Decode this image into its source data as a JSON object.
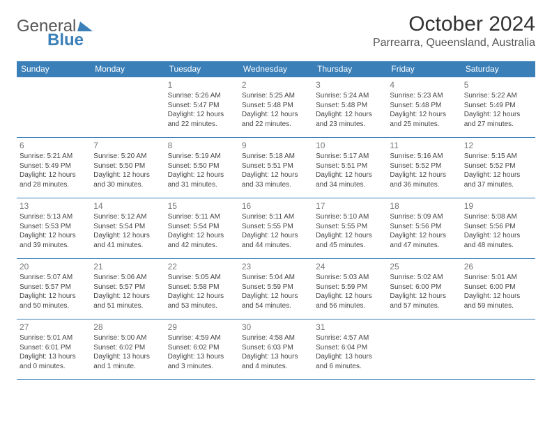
{
  "brand": {
    "name1": "General",
    "name2": "Blue",
    "color": "#3a7fb8"
  },
  "title": "October 2024",
  "location": "Parrearra, Queensland, Australia",
  "header_bg": "#3a7fb8",
  "header_fg": "#ffffff",
  "rule_color": "#3a7fb8",
  "daynum_color": "#777777",
  "text_color": "#444444",
  "day_headers": [
    "Sunday",
    "Monday",
    "Tuesday",
    "Wednesday",
    "Thursday",
    "Friday",
    "Saturday"
  ],
  "weeks": [
    [
      null,
      null,
      {
        "n": "1",
        "sr": "5:26 AM",
        "ss": "5:47 PM",
        "dl": "12 hours and 22 minutes."
      },
      {
        "n": "2",
        "sr": "5:25 AM",
        "ss": "5:48 PM",
        "dl": "12 hours and 22 minutes."
      },
      {
        "n": "3",
        "sr": "5:24 AM",
        "ss": "5:48 PM",
        "dl": "12 hours and 23 minutes."
      },
      {
        "n": "4",
        "sr": "5:23 AM",
        "ss": "5:48 PM",
        "dl": "12 hours and 25 minutes."
      },
      {
        "n": "5",
        "sr": "5:22 AM",
        "ss": "5:49 PM",
        "dl": "12 hours and 27 minutes."
      }
    ],
    [
      {
        "n": "6",
        "sr": "5:21 AM",
        "ss": "5:49 PM",
        "dl": "12 hours and 28 minutes."
      },
      {
        "n": "7",
        "sr": "5:20 AM",
        "ss": "5:50 PM",
        "dl": "12 hours and 30 minutes."
      },
      {
        "n": "8",
        "sr": "5:19 AM",
        "ss": "5:50 PM",
        "dl": "12 hours and 31 minutes."
      },
      {
        "n": "9",
        "sr": "5:18 AM",
        "ss": "5:51 PM",
        "dl": "12 hours and 33 minutes."
      },
      {
        "n": "10",
        "sr": "5:17 AM",
        "ss": "5:51 PM",
        "dl": "12 hours and 34 minutes."
      },
      {
        "n": "11",
        "sr": "5:16 AM",
        "ss": "5:52 PM",
        "dl": "12 hours and 36 minutes."
      },
      {
        "n": "12",
        "sr": "5:15 AM",
        "ss": "5:52 PM",
        "dl": "12 hours and 37 minutes."
      }
    ],
    [
      {
        "n": "13",
        "sr": "5:13 AM",
        "ss": "5:53 PM",
        "dl": "12 hours and 39 minutes."
      },
      {
        "n": "14",
        "sr": "5:12 AM",
        "ss": "5:54 PM",
        "dl": "12 hours and 41 minutes."
      },
      {
        "n": "15",
        "sr": "5:11 AM",
        "ss": "5:54 PM",
        "dl": "12 hours and 42 minutes."
      },
      {
        "n": "16",
        "sr": "5:11 AM",
        "ss": "5:55 PM",
        "dl": "12 hours and 44 minutes."
      },
      {
        "n": "17",
        "sr": "5:10 AM",
        "ss": "5:55 PM",
        "dl": "12 hours and 45 minutes."
      },
      {
        "n": "18",
        "sr": "5:09 AM",
        "ss": "5:56 PM",
        "dl": "12 hours and 47 minutes."
      },
      {
        "n": "19",
        "sr": "5:08 AM",
        "ss": "5:56 PM",
        "dl": "12 hours and 48 minutes."
      }
    ],
    [
      {
        "n": "20",
        "sr": "5:07 AM",
        "ss": "5:57 PM",
        "dl": "12 hours and 50 minutes."
      },
      {
        "n": "21",
        "sr": "5:06 AM",
        "ss": "5:57 PM",
        "dl": "12 hours and 51 minutes."
      },
      {
        "n": "22",
        "sr": "5:05 AM",
        "ss": "5:58 PM",
        "dl": "12 hours and 53 minutes."
      },
      {
        "n": "23",
        "sr": "5:04 AM",
        "ss": "5:59 PM",
        "dl": "12 hours and 54 minutes."
      },
      {
        "n": "24",
        "sr": "5:03 AM",
        "ss": "5:59 PM",
        "dl": "12 hours and 56 minutes."
      },
      {
        "n": "25",
        "sr": "5:02 AM",
        "ss": "6:00 PM",
        "dl": "12 hours and 57 minutes."
      },
      {
        "n": "26",
        "sr": "5:01 AM",
        "ss": "6:00 PM",
        "dl": "12 hours and 59 minutes."
      }
    ],
    [
      {
        "n": "27",
        "sr": "5:01 AM",
        "ss": "6:01 PM",
        "dl": "13 hours and 0 minutes."
      },
      {
        "n": "28",
        "sr": "5:00 AM",
        "ss": "6:02 PM",
        "dl": "13 hours and 1 minute."
      },
      {
        "n": "29",
        "sr": "4:59 AM",
        "ss": "6:02 PM",
        "dl": "13 hours and 3 minutes."
      },
      {
        "n": "30",
        "sr": "4:58 AM",
        "ss": "6:03 PM",
        "dl": "13 hours and 4 minutes."
      },
      {
        "n": "31",
        "sr": "4:57 AM",
        "ss": "6:04 PM",
        "dl": "13 hours and 6 minutes."
      },
      null,
      null
    ]
  ],
  "labels": {
    "sunrise": "Sunrise:",
    "sunset": "Sunset:",
    "daylight": "Daylight:"
  }
}
